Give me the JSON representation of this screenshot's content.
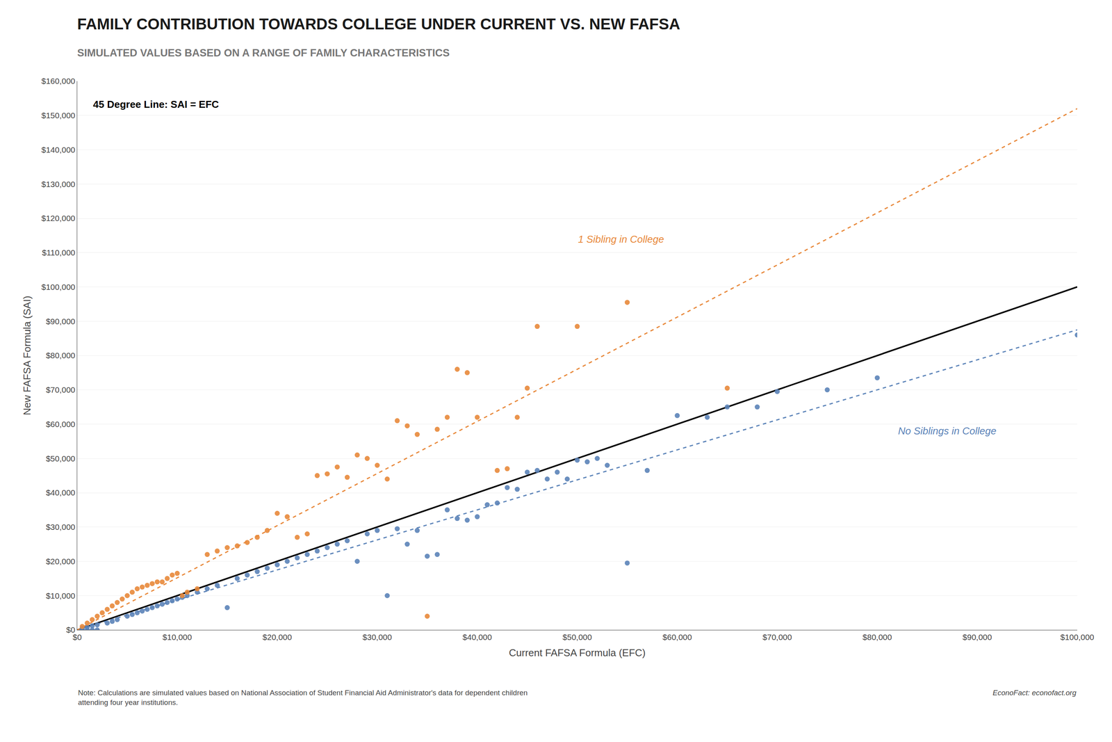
{
  "chart_data": {
    "type": "scatter",
    "title": "FAMILY CONTRIBUTION TOWARDS COLLEGE UNDER CURRENT VS. NEW FAFSA",
    "subtitle": "SIMULATED VALUES BASED ON A RANGE OF FAMILY CHARACTERISTICS",
    "xlabel": "Current FAFSA Formula (EFC)",
    "ylabel": "New FAFSA Formula (SAI)",
    "note": "Note: Calculations are simulated values based on National Association of Student Financial Aid Administrator's data for dependent children\nattending four year institutions.",
    "source": "EconoFact: econofact.org",
    "xlim": [
      0,
      100000
    ],
    "ylim": [
      0,
      160000
    ],
    "xticks": [
      {
        "value": 0,
        "label": "$0"
      },
      {
        "value": 10000,
        "label": "$10,000"
      },
      {
        "value": 20000,
        "label": "$20,000"
      },
      {
        "value": 30000,
        "label": "$30,000"
      },
      {
        "value": 40000,
        "label": "$40,000"
      },
      {
        "value": 50000,
        "label": "$50,000"
      },
      {
        "value": 60000,
        "label": "$60,000"
      },
      {
        "value": 70000,
        "label": "$70,000"
      },
      {
        "value": 80000,
        "label": "$80,000"
      },
      {
        "value": 90000,
        "label": "$90,000"
      },
      {
        "value": 100000,
        "label": "$100,000"
      }
    ],
    "yticks": [
      {
        "value": 0,
        "label": "$0"
      },
      {
        "value": 10000,
        "label": "$10,000"
      },
      {
        "value": 20000,
        "label": "$20,000"
      },
      {
        "value": 30000,
        "label": "$30,000"
      },
      {
        "value": 40000,
        "label": "$40,000"
      },
      {
        "value": 50000,
        "label": "$50,000"
      },
      {
        "value": 60000,
        "label": "$60,000"
      },
      {
        "value": 70000,
        "label": "$70,000"
      },
      {
        "value": 80000,
        "label": "$80,000"
      },
      {
        "value": 90000,
        "label": "$90,000"
      },
      {
        "value": 100000,
        "label": "$100,000"
      },
      {
        "value": 110000,
        "label": "$110,000"
      },
      {
        "value": 120000,
        "label": "$120,000"
      },
      {
        "value": 130000,
        "label": "$130,000"
      },
      {
        "value": 140000,
        "label": "$140,000"
      },
      {
        "value": 150000,
        "label": "$150,000"
      },
      {
        "value": 160000,
        "label": "$160,000"
      }
    ],
    "grid": "y",
    "series": [
      {
        "type": "line",
        "name": "45 Degree Line: SAI = EFC",
        "color": "#000000",
        "line_style": "solid",
        "x": [
          0,
          100000
        ],
        "values": [
          0,
          100000
        ]
      },
      {
        "type": "line",
        "color": "#5B83B8",
        "line_style": "dashed",
        "x": [
          0,
          100000
        ],
        "values": [
          0,
          87500
        ]
      },
      {
        "type": "line",
        "color": "#E8883A",
        "line_style": "dashed",
        "x": [
          0,
          100000
        ],
        "values": [
          0,
          152000
        ]
      },
      {
        "type": "scatter",
        "name": "No Siblings in College",
        "color": "#5B83B8",
        "marker": "circle",
        "x": [
          500,
          1000,
          1500,
          2000,
          500,
          1000,
          1500,
          2000,
          3000,
          3500,
          4000,
          5000,
          5500,
          6000,
          6500,
          7000,
          7500,
          8000,
          8500,
          9000,
          9500,
          10000,
          10500,
          11000,
          12000,
          13000,
          14000,
          15000,
          16000,
          17000,
          18000,
          19000,
          20000,
          21000,
          22000,
          23000,
          24000,
          25000,
          26000,
          27000,
          28000,
          29000,
          30000,
          31000,
          32000,
          33000,
          34000,
          35000,
          36000,
          37000,
          38000,
          39000,
          40000,
          41000,
          42000,
          43000,
          44000,
          45000,
          46000,
          47000,
          48000,
          49000,
          50000,
          51000,
          52000,
          53000,
          55000,
          57000,
          60000,
          63000,
          65000,
          68000,
          70000,
          75000,
          80000,
          100000
        ],
        "values": [
          0,
          0,
          0,
          0,
          500,
          800,
          1200,
          1500,
          2000,
          2500,
          3000,
          4000,
          4500,
          5000,
          5500,
          6000,
          6500,
          7000,
          7500,
          8000,
          8500,
          9000,
          9500,
          10000,
          11000,
          12000,
          13000,
          6500,
          15000,
          16000,
          17000,
          18000,
          19000,
          20000,
          21000,
          22000,
          23000,
          24000,
          25000,
          26000,
          20000,
          28000,
          29000,
          10000,
          29500,
          25000,
          29000,
          21500,
          22000,
          35000,
          32500,
          32000,
          33000,
          36500,
          37000,
          41500,
          41000,
          46000,
          46500,
          44000,
          46000,
          44000,
          49500,
          49000,
          50000,
          48000,
          19500,
          46500,
          62500,
          62000,
          65000,
          65000,
          69500,
          70000,
          73500,
          86000
        ]
      },
      {
        "type": "scatter",
        "name": "1 Sibling in College",
        "color": "#E8883A",
        "marker": "circle",
        "x": [
          500,
          1000,
          1500,
          2000,
          2500,
          3000,
          3500,
          4000,
          4500,
          5000,
          5500,
          6000,
          6500,
          7000,
          7500,
          8000,
          8500,
          9000,
          9500,
          10000,
          10500,
          11000,
          12000,
          13000,
          14000,
          15000,
          16000,
          17000,
          18000,
          19000,
          20000,
          21000,
          22000,
          23000,
          24000,
          25000,
          26000,
          27000,
          28000,
          29000,
          30000,
          31000,
          32000,
          33000,
          34000,
          35000,
          36000,
          37000,
          38000,
          39000,
          40000,
          42000,
          43000,
          44000,
          45000,
          46000,
          50000,
          55000,
          65000
        ],
        "values": [
          1000,
          2000,
          3000,
          4000,
          5000,
          6000,
          7000,
          8000,
          9000,
          10000,
          11000,
          12000,
          12500,
          13000,
          13500,
          14000,
          14000,
          15000,
          16000,
          16500,
          10000,
          11000,
          12000,
          22000,
          23000,
          24000,
          24500,
          25500,
          27000,
          29000,
          34000,
          33000,
          27000,
          28000,
          45000,
          45500,
          47500,
          44500,
          51000,
          50000,
          48000,
          44000,
          61000,
          59500,
          57000,
          4000,
          58500,
          62000,
          76000,
          75000,
          62000,
          46500,
          47000,
          62000,
          70500,
          88500,
          88500,
          95500,
          70500
        ]
      }
    ]
  }
}
